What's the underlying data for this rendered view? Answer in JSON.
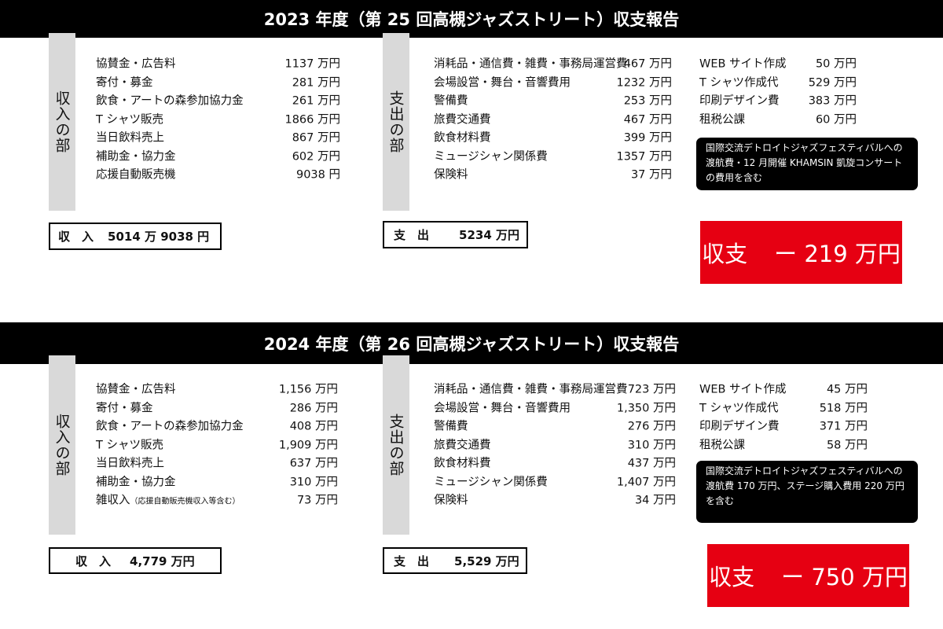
{
  "reports": [
    {
      "title": "2023 年度（第 25 回高槻ジャズストリート）収支報告",
      "income": {
        "label": "収入の部",
        "items": [
          {
            "name": "協賛金・広告料",
            "amount": "1137 万円"
          },
          {
            "name": "寄付・募金",
            "amount": "281 万円"
          },
          {
            "name": "飲食・アートの森参加協力金",
            "amount": "261 万円"
          },
          {
            "name": "T シャツ販売",
            "amount": "1866 万円"
          },
          {
            "name": "当日飲料売上",
            "amount": "867 万円"
          },
          {
            "name": "補助金・協力金",
            "amount": "602 万円"
          },
          {
            "name": "応援自動販売機",
            "amount": "9038 円"
          }
        ],
        "total": {
          "label": "収　入",
          "amount": "5014 万 9038 円"
        }
      },
      "expense": {
        "label": "支出の部",
        "items": [
          {
            "name": "消耗品・通信費・雑費・事務局運営費",
            "amount": "467 万円"
          },
          {
            "name": "会場設営・舞台・音響費用",
            "amount": "1232 万円"
          },
          {
            "name": "警備費",
            "amount": "253 万円"
          },
          {
            "name": "旅費交通費",
            "amount": "467 万円"
          },
          {
            "name": "飲食材料費",
            "amount": "399 万円"
          },
          {
            "name": "ミュージシャン関係費",
            "amount": "1357 万円"
          },
          {
            "name": "保険料",
            "amount": "37 万円"
          }
        ],
        "items2": [
          {
            "name": "WEB サイト作成",
            "amount": "50 万円"
          },
          {
            "name": "T シャツ作成代",
            "amount": "529 万円"
          },
          {
            "name": "印刷デザイン費",
            "amount": "383 万円"
          },
          {
            "name": "租税公課",
            "amount": "60 万円"
          }
        ],
        "note": "国際交流デトロイトジャズフェスティバルへの渡航費・12 月開催 KHAMSIN 凱旋コンサートの費用を含む",
        "total": {
          "label": "支　出",
          "amount": "5234 万円"
        }
      },
      "balance": {
        "label": "収支",
        "amount": "ー 219 万円"
      }
    },
    {
      "title": "2024 年度（第 26 回高槻ジャズストリート）収支報告",
      "income": {
        "label": "収入の部",
        "items": [
          {
            "name": "協賛金・広告料",
            "amount": "1,156 万円"
          },
          {
            "name": "寄付・募金",
            "amount": "286 万円"
          },
          {
            "name": "飲食・アートの森参加協力金",
            "amount": "408 万円"
          },
          {
            "name": "T シャツ販売",
            "amount": "1,909 万円"
          },
          {
            "name": "当日飲料売上",
            "amount": "637 万円"
          },
          {
            "name": "補助金・協力金",
            "amount": "310 万円"
          },
          {
            "name": "雑収入",
            "sub": "（応援自動販売機収入等含む）",
            "amount": "73 万円"
          }
        ],
        "total": {
          "label": "収　入",
          "amount": "4,779 万円"
        }
      },
      "expense": {
        "label": "支出の部",
        "items": [
          {
            "name": "消耗品・通信費・雑費・事務局運営費",
            "amount": "723 万円"
          },
          {
            "name": "会場設営・舞台・音響費用",
            "amount": "1,350 万円"
          },
          {
            "name": "警備費",
            "amount": "276 万円"
          },
          {
            "name": "旅費交通費",
            "amount": "310 万円"
          },
          {
            "name": "飲食材料費",
            "amount": "437 万円"
          },
          {
            "name": "ミュージシャン関係費",
            "amount": "1,407 万円"
          },
          {
            "name": "保険料",
            "amount": "34 万円"
          }
        ],
        "items2": [
          {
            "name": "WEB サイト作成",
            "amount": "45 万円"
          },
          {
            "name": "T シャツ作成代",
            "amount": "518 万円"
          },
          {
            "name": "印刷デザイン費",
            "amount": "371 万円"
          },
          {
            "name": "租税公課",
            "amount": "58 万円"
          }
        ],
        "note": "国際交流デトロイトジャズフェスティバルへの渡航費 170 万円、ステージ購入費用 220 万円を含む",
        "total": {
          "label": "支　出",
          "amount": "5,529 万円"
        }
      },
      "balance": {
        "label": "収支",
        "amount": "ー 750 万円"
      }
    }
  ]
}
